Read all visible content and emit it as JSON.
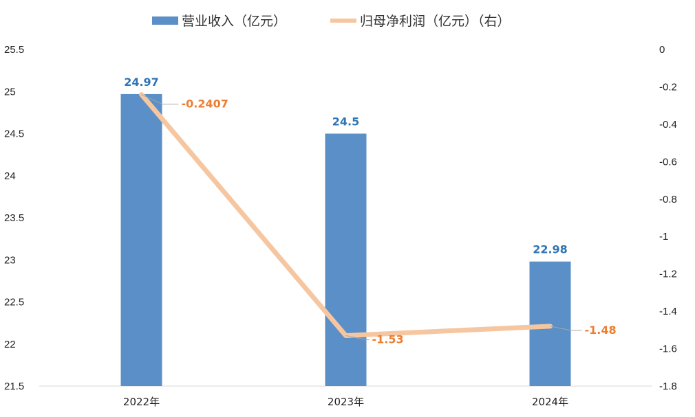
{
  "chart_data": {
    "type": "bar",
    "categories": [
      "2022年",
      "2023年",
      "2024年"
    ],
    "series": [
      {
        "name": "营业收入（亿元）",
        "type": "bar",
        "axis": "left",
        "values": [
          24.97,
          24.5,
          22.98
        ],
        "data_labels": [
          "24.97",
          "24.5",
          "22.98"
        ],
        "color": "#5B8FC7"
      },
      {
        "name": "归母净利润（亿元）（右）",
        "type": "line",
        "axis": "right",
        "values": [
          -0.2407,
          -1.53,
          -1.48
        ],
        "data_labels": [
          "-0.2407",
          "-1.53",
          "-1.48"
        ],
        "color": "#F6C6A0"
      }
    ],
    "left_axis": {
      "ylim": [
        21.5,
        25.5
      ],
      "ticks": [
        "21.5",
        "22",
        "22.5",
        "23",
        "23.5",
        "24",
        "24.5",
        "25",
        "25.5"
      ]
    },
    "right_axis": {
      "ylim": [
        -1.8,
        0
      ],
      "ticks": [
        "-1.8",
        "-1.6",
        "-1.4",
        "-1.2",
        "-1",
        "-0.8",
        "-0.6",
        "-0.4",
        "-0.2",
        "0"
      ]
    },
    "grid": false,
    "legend_position": "top",
    "colors": {
      "bar_label": "#2E75B6",
      "line_label": "#ED7D31",
      "leader": "#A6A6A6",
      "axis": "#D9D9D9"
    }
  }
}
